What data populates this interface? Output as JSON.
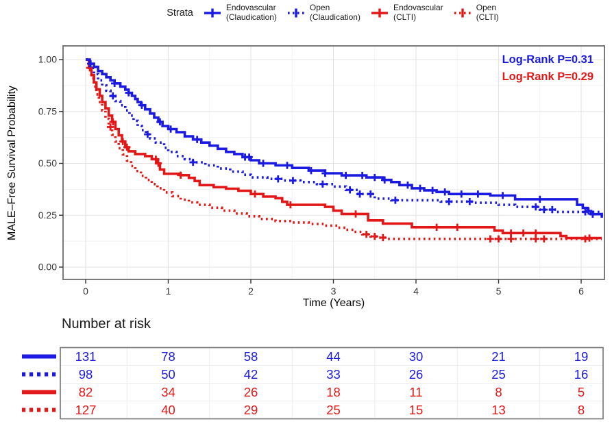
{
  "figure": {
    "background": "#ffffff",
    "palette": {
      "blue": "#1a1ae0",
      "red": "#e21717"
    }
  },
  "legend": {
    "title": "Strata",
    "items": [
      {
        "label_line1": "Endovascular",
        "label_line2": "(Claudication)",
        "color": "#1a1ae0",
        "linetype": "solid"
      },
      {
        "label_line1": "Open",
        "label_line2": "(Claudication)",
        "color": "#1a1ae0",
        "linetype": "dotted"
      },
      {
        "label_line1": "Endovascular",
        "label_line2": "(CLTI)",
        "color": "#e21717",
        "linetype": "solid"
      },
      {
        "label_line1": "Open",
        "label_line2": "(CLTI)",
        "color": "#e21717",
        "linetype": "dotted"
      }
    ]
  },
  "annotations": [
    {
      "text": "Log-Rank P=0.31",
      "color": "#1a1ae0"
    },
    {
      "text": "Log-Rank P=0.29",
      "color": "#e21717"
    }
  ],
  "chart_data": {
    "type": "line",
    "subtype": "kaplan-meier-step",
    "title": "",
    "xlabel": "Time (Years)",
    "ylabel": "MALE–Free Survival Probability",
    "xlim": [
      -0.27,
      6.28
    ],
    "ylim": [
      -0.06,
      1.06
    ],
    "grid": {
      "major": true,
      "minor": true
    },
    "legend_position": "top",
    "xticks": [
      {
        "label": "0",
        "value": 0
      },
      {
        "label": "1",
        "value": 1
      },
      {
        "label": "2",
        "value": 2
      },
      {
        "label": "3",
        "value": 3
      },
      {
        "label": "4",
        "value": 4
      },
      {
        "label": "5",
        "value": 5
      },
      {
        "label": "6",
        "value": 6
      }
    ],
    "yticks": [
      {
        "label": "1.00",
        "value": 1.0
      },
      {
        "label": "0.75",
        "value": 0.75
      },
      {
        "label": "0.50",
        "value": 0.5
      },
      {
        "label": "0.25",
        "value": 0.25
      },
      {
        "label": "0.00",
        "value": 0.0
      }
    ],
    "series": [
      {
        "name": "Endovascular (Claudication)",
        "color": "#1a1ae0",
        "linetype": "solid",
        "points": [
          [
            0,
            1.0
          ],
          [
            0.05,
            0.98
          ],
          [
            0.1,
            0.965
          ],
          [
            0.15,
            0.945
          ],
          [
            0.2,
            0.93
          ],
          [
            0.25,
            0.915
          ],
          [
            0.3,
            0.9
          ],
          [
            0.35,
            0.885
          ],
          [
            0.42,
            0.87
          ],
          [
            0.48,
            0.855
          ],
          [
            0.52,
            0.84
          ],
          [
            0.56,
            0.825
          ],
          [
            0.6,
            0.81
          ],
          [
            0.63,
            0.795
          ],
          [
            0.67,
            0.78
          ],
          [
            0.72,
            0.76
          ],
          [
            0.78,
            0.74
          ],
          [
            0.83,
            0.72
          ],
          [
            0.88,
            0.7
          ],
          [
            0.93,
            0.68
          ],
          [
            1.0,
            0.665
          ],
          [
            1.1,
            0.65
          ],
          [
            1.2,
            0.63
          ],
          [
            1.3,
            0.615
          ],
          [
            1.4,
            0.6
          ],
          [
            1.5,
            0.585
          ],
          [
            1.6,
            0.57
          ],
          [
            1.7,
            0.555
          ],
          [
            1.8,
            0.545
          ],
          [
            1.9,
            0.53
          ],
          [
            2.0,
            0.515
          ],
          [
            2.1,
            0.5
          ],
          [
            2.3,
            0.49
          ],
          [
            2.5,
            0.478
          ],
          [
            2.7,
            0.465
          ],
          [
            2.9,
            0.452
          ],
          [
            3.1,
            0.442
          ],
          [
            3.4,
            0.432
          ],
          [
            3.6,
            0.42
          ],
          [
            3.7,
            0.41
          ],
          [
            3.8,
            0.395
          ],
          [
            3.95,
            0.38
          ],
          [
            4.1,
            0.37
          ],
          [
            4.25,
            0.362
          ],
          [
            4.4,
            0.352
          ],
          [
            4.9,
            0.345
          ],
          [
            5.2,
            0.327
          ],
          [
            5.95,
            0.3
          ],
          [
            6.02,
            0.285
          ],
          [
            6.08,
            0.27
          ],
          [
            6.12,
            0.255
          ],
          [
            6.25,
            0.238
          ]
        ],
        "censor_times": [
          0.06,
          0.35,
          0.52,
          0.68,
          0.9,
          1.03,
          1.35,
          1.93,
          1.98,
          2.15,
          2.44,
          2.73,
          2.9,
          3.15,
          3.35,
          3.5,
          3.62,
          3.9,
          4.05,
          4.2,
          4.35,
          4.55,
          4.75,
          5.05,
          5.5,
          6.09,
          6.14
        ]
      },
      {
        "name": "Open (Claudication)",
        "color": "#1a1ae0",
        "linetype": "dotted",
        "points": [
          [
            0,
            1.0
          ],
          [
            0.05,
            0.96
          ],
          [
            0.1,
            0.93
          ],
          [
            0.15,
            0.9
          ],
          [
            0.2,
            0.875
          ],
          [
            0.25,
            0.85
          ],
          [
            0.3,
            0.825
          ],
          [
            0.36,
            0.8
          ],
          [
            0.42,
            0.78
          ],
          [
            0.48,
            0.755
          ],
          [
            0.53,
            0.73
          ],
          [
            0.58,
            0.705
          ],
          [
            0.63,
            0.68
          ],
          [
            0.68,
            0.66
          ],
          [
            0.73,
            0.64
          ],
          [
            0.78,
            0.62
          ],
          [
            0.85,
            0.6
          ],
          [
            0.95,
            0.575
          ],
          [
            1.0,
            0.555
          ],
          [
            1.1,
            0.535
          ],
          [
            1.2,
            0.52
          ],
          [
            1.3,
            0.505
          ],
          [
            1.45,
            0.49
          ],
          [
            1.6,
            0.475
          ],
          [
            1.75,
            0.46
          ],
          [
            1.9,
            0.445
          ],
          [
            2.0,
            0.432
          ],
          [
            2.2,
            0.425
          ],
          [
            2.4,
            0.417
          ],
          [
            2.6,
            0.41
          ],
          [
            2.8,
            0.4
          ],
          [
            3.0,
            0.388
          ],
          [
            3.15,
            0.372
          ],
          [
            3.3,
            0.352
          ],
          [
            3.5,
            0.33
          ],
          [
            3.7,
            0.322
          ],
          [
            4.3,
            0.316
          ],
          [
            4.7,
            0.31
          ],
          [
            5.0,
            0.3
          ],
          [
            5.2,
            0.29
          ],
          [
            5.5,
            0.277
          ],
          [
            5.7,
            0.266
          ],
          [
            6.25,
            0.26
          ]
        ],
        "censor_times": [
          0.33,
          0.75,
          1.3,
          2.33,
          2.51,
          2.87,
          3.2,
          3.32,
          3.45,
          3.75,
          4.4,
          4.65,
          5.45,
          5.55,
          5.65,
          6.05
        ]
      },
      {
        "name": "Endovascular (CLTI)",
        "color": "#e21717",
        "linetype": "solid",
        "points": [
          [
            0,
            1.0
          ],
          [
            0.04,
            0.96
          ],
          [
            0.07,
            0.925
          ],
          [
            0.1,
            0.89
          ],
          [
            0.13,
            0.857
          ],
          [
            0.17,
            0.825
          ],
          [
            0.2,
            0.795
          ],
          [
            0.24,
            0.765
          ],
          [
            0.28,
            0.73
          ],
          [
            0.32,
            0.7
          ],
          [
            0.36,
            0.665
          ],
          [
            0.4,
            0.635
          ],
          [
            0.44,
            0.605
          ],
          [
            0.48,
            0.578
          ],
          [
            0.52,
            0.558
          ],
          [
            0.6,
            0.545
          ],
          [
            0.72,
            0.535
          ],
          [
            0.8,
            0.52
          ],
          [
            0.86,
            0.5
          ],
          [
            0.9,
            0.47
          ],
          [
            0.95,
            0.45
          ],
          [
            1.15,
            0.443
          ],
          [
            1.25,
            0.43
          ],
          [
            1.32,
            0.415
          ],
          [
            1.38,
            0.395
          ],
          [
            1.55,
            0.385
          ],
          [
            1.7,
            0.378
          ],
          [
            1.85,
            0.368
          ],
          [
            2.0,
            0.352
          ],
          [
            2.15,
            0.34
          ],
          [
            2.3,
            0.332
          ],
          [
            2.38,
            0.315
          ],
          [
            2.44,
            0.3
          ],
          [
            2.9,
            0.29
          ],
          [
            3.0,
            0.272
          ],
          [
            3.1,
            0.256
          ],
          [
            3.42,
            0.225
          ],
          [
            3.6,
            0.21
          ],
          [
            3.95,
            0.192
          ],
          [
            4.95,
            0.176
          ],
          [
            5.05,
            0.164
          ],
          [
            5.75,
            0.15
          ],
          [
            5.82,
            0.14
          ],
          [
            6.25,
            0.14
          ]
        ],
        "censor_times": [
          0.05,
          0.33,
          0.45,
          0.5,
          0.85,
          0.88,
          1.15,
          2.05,
          2.48,
          3.27,
          4.25,
          4.5,
          5.15,
          5.3,
          5.45,
          6.1
        ]
      },
      {
        "name": "Open (CLTI)",
        "color": "#e21717",
        "linetype": "dotted",
        "points": [
          [
            0,
            1.0
          ],
          [
            0.04,
            0.95
          ],
          [
            0.07,
            0.91
          ],
          [
            0.1,
            0.87
          ],
          [
            0.13,
            0.832
          ],
          [
            0.16,
            0.795
          ],
          [
            0.2,
            0.755
          ],
          [
            0.24,
            0.715
          ],
          [
            0.28,
            0.675
          ],
          [
            0.32,
            0.638
          ],
          [
            0.36,
            0.605
          ],
          [
            0.4,
            0.573
          ],
          [
            0.45,
            0.543
          ],
          [
            0.5,
            0.513
          ],
          [
            0.55,
            0.487
          ],
          [
            0.6,
            0.463
          ],
          [
            0.67,
            0.44
          ],
          [
            0.73,
            0.42
          ],
          [
            0.8,
            0.4
          ],
          [
            0.87,
            0.38
          ],
          [
            0.95,
            0.36
          ],
          [
            1.05,
            0.342
          ],
          [
            1.15,
            0.325
          ],
          [
            1.25,
            0.312
          ],
          [
            1.35,
            0.3
          ],
          [
            1.5,
            0.286
          ],
          [
            1.65,
            0.272
          ],
          [
            1.8,
            0.258
          ],
          [
            1.95,
            0.245
          ],
          [
            2.1,
            0.232
          ],
          [
            2.3,
            0.222
          ],
          [
            2.5,
            0.215
          ],
          [
            2.7,
            0.208
          ],
          [
            2.9,
            0.2
          ],
          [
            3.05,
            0.19
          ],
          [
            3.15,
            0.18
          ],
          [
            3.25,
            0.17
          ],
          [
            3.35,
            0.158
          ],
          [
            3.45,
            0.148
          ],
          [
            3.55,
            0.142
          ],
          [
            3.65,
            0.136
          ],
          [
            6.25,
            0.136
          ]
        ],
        "censor_times": [
          0.3,
          3.4,
          3.5,
          3.6,
          4.9,
          5.0,
          5.15,
          5.45,
          5.55,
          6.05
        ]
      }
    ]
  },
  "risk_table": {
    "title": "Number at risk",
    "times": [
      0,
      1,
      2,
      3,
      4,
      5,
      6
    ],
    "rows": [
      {
        "name": "Endovascular (Claudication)",
        "color": "#1a1ae0",
        "linetype": "solid",
        "values": [
          131,
          78,
          58,
          44,
          30,
          21,
          19
        ]
      },
      {
        "name": "Open (Claudication)",
        "color": "#1a1ae0",
        "linetype": "dotted",
        "values": [
          98,
          50,
          42,
          33,
          26,
          25,
          16
        ]
      },
      {
        "name": "Endovascular (CLTI)",
        "color": "#e21717",
        "linetype": "solid",
        "values": [
          82,
          34,
          26,
          18,
          11,
          8,
          5
        ]
      },
      {
        "name": "Open (CLTI)",
        "color": "#e21717",
        "linetype": "dotted",
        "values": [
          127,
          40,
          29,
          25,
          15,
          13,
          8
        ]
      }
    ]
  }
}
